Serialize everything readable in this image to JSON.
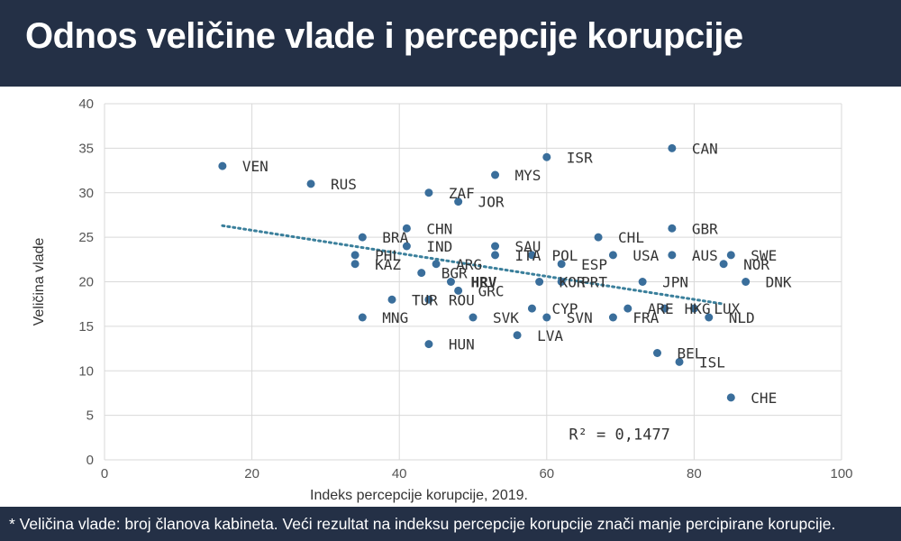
{
  "header": {
    "title": "Odnos veličine vlade i percepcije korupcije"
  },
  "footer": {
    "note": "* Veličina vlade: broj članova kabineta. Veći rezultat na indeksu percepcije korupcije znači manje percipirane korupcije."
  },
  "colors": {
    "header_bg": "#243046",
    "point": "#3a6e9b",
    "trend": "#3a7f9b",
    "highlight_label": "#e0202a",
    "grid": "#d9d9d9"
  },
  "chart_data": {
    "type": "scatter",
    "xlabel": "Indeks percepcije korupcije, 2019.",
    "ylabel": "Veličina vlade",
    "xlim": [
      0,
      100
    ],
    "ylim": [
      0,
      40
    ],
    "x_ticks": [
      "0",
      "20",
      "40",
      "60",
      "80",
      "100"
    ],
    "y_ticks": [
      "0",
      "5",
      "10",
      "15",
      "20",
      "25",
      "30",
      "35",
      "40"
    ],
    "grid": true,
    "annotation": "R² = 0,1477",
    "trendline": {
      "style": "dotted",
      "x": [
        16,
        84
      ],
      "y": [
        26.3,
        17.5
      ]
    },
    "highlight": "HRV",
    "points": [
      {
        "label": "VEN",
        "x": 16,
        "y": 33
      },
      {
        "label": "RUS",
        "x": 28,
        "y": 31
      },
      {
        "label": "ISR",
        "x": 60,
        "y": 34
      },
      {
        "label": "CAN",
        "x": 77,
        "y": 35
      },
      {
        "label": "MYS",
        "x": 53,
        "y": 32
      },
      {
        "label": "ZAF",
        "x": 44,
        "y": 30
      },
      {
        "label": "JOR",
        "x": 48,
        "y": 29
      },
      {
        "label": "CHN",
        "x": 41,
        "y": 26
      },
      {
        "label": "GBR",
        "x": 77,
        "y": 26
      },
      {
        "label": "BRA",
        "x": 35,
        "y": 25
      },
      {
        "label": "CHL",
        "x": 67,
        "y": 25
      },
      {
        "label": "IND",
        "x": 41,
        "y": 24
      },
      {
        "label": "SAU",
        "x": 53,
        "y": 24
      },
      {
        "label": "PHL",
        "x": 34,
        "y": 23
      },
      {
        "label": "ITA",
        "x": 53,
        "y": 23
      },
      {
        "label": "POL",
        "x": 58,
        "y": 23
      },
      {
        "label": "USA",
        "x": 69,
        "y": 23
      },
      {
        "label": "AUS",
        "x": 77,
        "y": 23
      },
      {
        "label": "SWE",
        "x": 85,
        "y": 23
      },
      {
        "label": "KAZ",
        "x": 34,
        "y": 22
      },
      {
        "label": "ARG",
        "x": 45,
        "y": 22
      },
      {
        "label": "ESP",
        "x": 62,
        "y": 22
      },
      {
        "label": "NOR",
        "x": 84,
        "y": 22
      },
      {
        "label": "BGR",
        "x": 43,
        "y": 21
      },
      {
        "label": "HRV",
        "x": 47,
        "y": 20
      },
      {
        "label": "KOR",
        "x": 59,
        "y": 20
      },
      {
        "label": "PRT",
        "x": 62,
        "y": 20
      },
      {
        "label": "JPN",
        "x": 73,
        "y": 20
      },
      {
        "label": "DNK",
        "x": 87,
        "y": 20
      },
      {
        "label": "GRC",
        "x": 48,
        "y": 19
      },
      {
        "label": "TUR",
        "x": 39,
        "y": 18
      },
      {
        "label": "ROU",
        "x": 44,
        "y": 18
      },
      {
        "label": "CYP",
        "x": 58,
        "y": 17
      },
      {
        "label": "ARE",
        "x": 71,
        "y": 17
      },
      {
        "label": "HKG",
        "x": 76,
        "y": 17
      },
      {
        "label": "LUX",
        "x": 80,
        "y": 17
      },
      {
        "label": "MNG",
        "x": 35,
        "y": 16
      },
      {
        "label": "SVK",
        "x": 50,
        "y": 16
      },
      {
        "label": "SVN",
        "x": 60,
        "y": 16
      },
      {
        "label": "FRA",
        "x": 69,
        "y": 16
      },
      {
        "label": "NLD",
        "x": 82,
        "y": 16
      },
      {
        "label": "LVA",
        "x": 56,
        "y": 14
      },
      {
        "label": "HUN",
        "x": 44,
        "y": 13
      },
      {
        "label": "BEL",
        "x": 75,
        "y": 12
      },
      {
        "label": "ISL",
        "x": 78,
        "y": 11
      },
      {
        "label": "CHE",
        "x": 85,
        "y": 7
      }
    ]
  }
}
